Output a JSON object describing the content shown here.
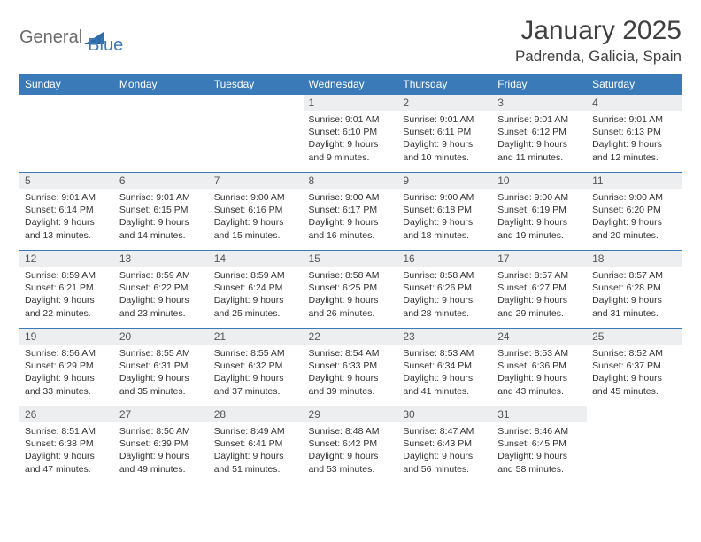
{
  "brand": {
    "part1": "General",
    "part2": "Blue"
  },
  "title": "January 2025",
  "location": "Padrenda, Galicia, Spain",
  "colors": {
    "header_bg": "#3a7ab8",
    "header_text": "#ffffff",
    "daynum_bg": "#eceeef",
    "border": "#3a7ab8",
    "text": "#333333",
    "brand_gray": "#6b6b6b",
    "brand_blue": "#3a7ab8"
  },
  "typography": {
    "title_size_pt": 22,
    "location_size_pt": 13,
    "dayheader_size_pt": 9,
    "body_size_pt": 8
  },
  "day_headers": [
    "Sunday",
    "Monday",
    "Tuesday",
    "Wednesday",
    "Thursday",
    "Friday",
    "Saturday"
  ],
  "weeks": [
    [
      null,
      null,
      null,
      {
        "n": "1",
        "sr": "9:01 AM",
        "ss": "6:10 PM",
        "dh": "9",
        "dm": "9"
      },
      {
        "n": "2",
        "sr": "9:01 AM",
        "ss": "6:11 PM",
        "dh": "9",
        "dm": "10"
      },
      {
        "n": "3",
        "sr": "9:01 AM",
        "ss": "6:12 PM",
        "dh": "9",
        "dm": "11"
      },
      {
        "n": "4",
        "sr": "9:01 AM",
        "ss": "6:13 PM",
        "dh": "9",
        "dm": "12"
      }
    ],
    [
      {
        "n": "5",
        "sr": "9:01 AM",
        "ss": "6:14 PM",
        "dh": "9",
        "dm": "13"
      },
      {
        "n": "6",
        "sr": "9:01 AM",
        "ss": "6:15 PM",
        "dh": "9",
        "dm": "14"
      },
      {
        "n": "7",
        "sr": "9:00 AM",
        "ss": "6:16 PM",
        "dh": "9",
        "dm": "15"
      },
      {
        "n": "8",
        "sr": "9:00 AM",
        "ss": "6:17 PM",
        "dh": "9",
        "dm": "16"
      },
      {
        "n": "9",
        "sr": "9:00 AM",
        "ss": "6:18 PM",
        "dh": "9",
        "dm": "18"
      },
      {
        "n": "10",
        "sr": "9:00 AM",
        "ss": "6:19 PM",
        "dh": "9",
        "dm": "19"
      },
      {
        "n": "11",
        "sr": "9:00 AM",
        "ss": "6:20 PM",
        "dh": "9",
        "dm": "20"
      }
    ],
    [
      {
        "n": "12",
        "sr": "8:59 AM",
        "ss": "6:21 PM",
        "dh": "9",
        "dm": "22"
      },
      {
        "n": "13",
        "sr": "8:59 AM",
        "ss": "6:22 PM",
        "dh": "9",
        "dm": "23"
      },
      {
        "n": "14",
        "sr": "8:59 AM",
        "ss": "6:24 PM",
        "dh": "9",
        "dm": "25"
      },
      {
        "n": "15",
        "sr": "8:58 AM",
        "ss": "6:25 PM",
        "dh": "9",
        "dm": "26"
      },
      {
        "n": "16",
        "sr": "8:58 AM",
        "ss": "6:26 PM",
        "dh": "9",
        "dm": "28"
      },
      {
        "n": "17",
        "sr": "8:57 AM",
        "ss": "6:27 PM",
        "dh": "9",
        "dm": "29"
      },
      {
        "n": "18",
        "sr": "8:57 AM",
        "ss": "6:28 PM",
        "dh": "9",
        "dm": "31"
      }
    ],
    [
      {
        "n": "19",
        "sr": "8:56 AM",
        "ss": "6:29 PM",
        "dh": "9",
        "dm": "33"
      },
      {
        "n": "20",
        "sr": "8:55 AM",
        "ss": "6:31 PM",
        "dh": "9",
        "dm": "35"
      },
      {
        "n": "21",
        "sr": "8:55 AM",
        "ss": "6:32 PM",
        "dh": "9",
        "dm": "37"
      },
      {
        "n": "22",
        "sr": "8:54 AM",
        "ss": "6:33 PM",
        "dh": "9",
        "dm": "39"
      },
      {
        "n": "23",
        "sr": "8:53 AM",
        "ss": "6:34 PM",
        "dh": "9",
        "dm": "41"
      },
      {
        "n": "24",
        "sr": "8:53 AM",
        "ss": "6:36 PM",
        "dh": "9",
        "dm": "43"
      },
      {
        "n": "25",
        "sr": "8:52 AM",
        "ss": "6:37 PM",
        "dh": "9",
        "dm": "45"
      }
    ],
    [
      {
        "n": "26",
        "sr": "8:51 AM",
        "ss": "6:38 PM",
        "dh": "9",
        "dm": "47"
      },
      {
        "n": "27",
        "sr": "8:50 AM",
        "ss": "6:39 PM",
        "dh": "9",
        "dm": "49"
      },
      {
        "n": "28",
        "sr": "8:49 AM",
        "ss": "6:41 PM",
        "dh": "9",
        "dm": "51"
      },
      {
        "n": "29",
        "sr": "8:48 AM",
        "ss": "6:42 PM",
        "dh": "9",
        "dm": "53"
      },
      {
        "n": "30",
        "sr": "8:47 AM",
        "ss": "6:43 PM",
        "dh": "9",
        "dm": "56"
      },
      {
        "n": "31",
        "sr": "8:46 AM",
        "ss": "6:45 PM",
        "dh": "9",
        "dm": "58"
      },
      null
    ]
  ],
  "labels": {
    "sunrise": "Sunrise:",
    "sunset": "Sunset:",
    "daylight": "Daylight:",
    "hours_word": "hours",
    "and_word": "and",
    "minutes_word": "minutes."
  }
}
